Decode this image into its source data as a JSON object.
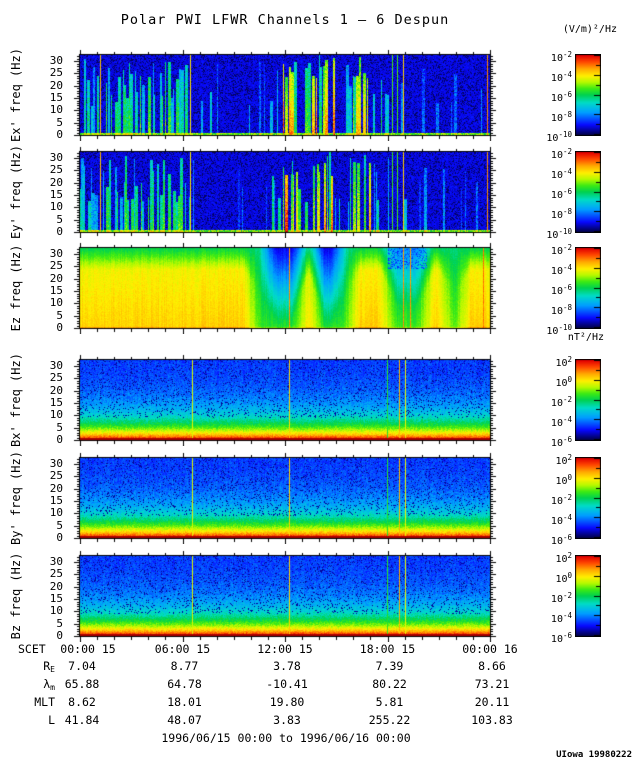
{
  "title": "Polar PWI LFWR Channels 1 — 6 Despun",
  "units": {
    "electric": "(V/m)²/Hz",
    "magnetic": "nT²/Hz"
  },
  "footer": {
    "date_range": "1996/06/15 00:00 to 1996/06/16 00:00",
    "credit": "UIowa 19980222"
  },
  "ephemeris": {
    "rows": [
      {
        "id": "re",
        "label_main": "R",
        "label_sub": "E",
        "values": [
          "7.04",
          "8.77",
          "3.78",
          "7.39",
          "8.66"
        ]
      },
      {
        "id": "lambda-m",
        "label_main": "λ",
        "label_sub": "m",
        "values": [
          "65.88",
          "64.78",
          "-10.41",
          "80.22",
          "73.21"
        ]
      },
      {
        "id": "mlt",
        "label_main": "MLT",
        "label_sub": "",
        "values": [
          "8.62",
          "18.01",
          "19.80",
          "5.81",
          "20.11"
        ]
      },
      {
        "id": "l",
        "label_main": "L",
        "label_sub": "",
        "values": [
          "41.84",
          "48.07",
          "3.83",
          "255.22",
          "103.83"
        ]
      }
    ]
  },
  "chart_data": {
    "type": "heatmap",
    "title": "Polar PWI LFWR Channels 1 — 6 Despun",
    "x_axis": {
      "label": "SCET",
      "tick_labels": [
        "00:00 15",
        "06:00 15",
        "12:00 15",
        "18:00 15",
        "00:00 16"
      ],
      "tick_hours": [
        0,
        6,
        12,
        18,
        24
      ],
      "span_hours": 24
    },
    "y_axis": {
      "unit": "Hz",
      "tick_values": [
        0,
        5,
        10,
        15,
        20,
        25,
        30
      ],
      "max_hz": 32.5
    },
    "colormap_stops": [
      [
        0,
        2,
        2,
        80
      ],
      [
        0.12,
        8,
        8,
        255
      ],
      [
        0.28,
        0,
        160,
        255
      ],
      [
        0.4,
        0,
        220,
        200
      ],
      [
        0.5,
        0,
        210,
        80
      ],
      [
        0.58,
        60,
        235,
        20
      ],
      [
        0.66,
        180,
        250,
        0
      ],
      [
        0.74,
        255,
        240,
        0
      ],
      [
        0.83,
        255,
        170,
        0
      ],
      [
        0.92,
        255,
        70,
        0
      ],
      [
        1,
        225,
        0,
        0
      ]
    ],
    "panels": [
      {
        "id": "ex",
        "ylabel": "Ex' freq (Hz)",
        "style": "burst",
        "seed": 11,
        "colorbar_unit": "(V/m)²/Hz",
        "colorbar_tick_exponents": [
          "-2",
          "-4",
          "-6",
          "-8",
          "-10"
        ]
      },
      {
        "id": "ey",
        "ylabel": "Ey' freq (Hz)",
        "style": "burst",
        "seed": 23,
        "colorbar_unit": "(V/m)²/Hz",
        "colorbar_tick_exponents": [
          "-2",
          "-4",
          "-6",
          "-8",
          "-10"
        ]
      },
      {
        "id": "ez",
        "ylabel": "Ez freq (Hz)",
        "style": "ez",
        "seed": 37,
        "colorbar_unit": "(V/m)²/Hz",
        "colorbar_tick_exponents": [
          "-2",
          "-4",
          "-6",
          "-8",
          "-10"
        ]
      },
      {
        "id": "bx",
        "ylabel": "Bx' freq (Hz)",
        "style": "b",
        "seed": 47,
        "colorbar_unit": "nT²/Hz",
        "colorbar_tick_exponents": [
          "2",
          "0",
          "-2",
          "-4",
          "-6"
        ]
      },
      {
        "id": "by",
        "ylabel": "By' freq (Hz)",
        "style": "b",
        "seed": 59,
        "colorbar_unit": "nT²/Hz",
        "colorbar_tick_exponents": [
          "2",
          "0",
          "-2",
          "-4",
          "-6"
        ]
      },
      {
        "id": "bz",
        "ylabel": "Bz freq (Hz)",
        "style": "b",
        "seed": 71,
        "colorbar_unit": "nT²/Hz",
        "colorbar_tick_exponents": [
          "2",
          "0",
          "-2",
          "-4",
          "-6"
        ]
      }
    ],
    "e_envelope": [
      [
        0,
        0.1,
        0.85,
        0.55
      ],
      [
        0.1,
        0.27,
        0.75,
        0.6
      ],
      [
        0.27,
        0.34,
        0.25,
        0.4
      ],
      [
        0.34,
        0.46,
        0.12,
        0.3
      ],
      [
        0.46,
        0.49,
        0.3,
        0.5
      ],
      [
        0.49,
        0.53,
        0.9,
        0.95
      ],
      [
        0.53,
        0.565,
        0.5,
        0.6
      ],
      [
        0.565,
        0.62,
        0.85,
        0.9
      ],
      [
        0.62,
        0.66,
        0.3,
        0.5
      ],
      [
        0.66,
        0.71,
        0.8,
        0.85
      ],
      [
        0.71,
        0.76,
        0.35,
        0.5
      ],
      [
        0.76,
        0.8,
        0.2,
        0.45
      ],
      [
        0.8,
        1.001,
        0.1,
        0.3
      ]
    ],
    "e_lines": [
      {
        "t": 0.05,
        "v": 0.8
      },
      {
        "t": 0.27,
        "v": 0.75
      },
      {
        "t": 0.763,
        "v": 0.58
      },
      {
        "t": 0.776,
        "v": 0.58
      },
      {
        "t": 0.789,
        "v": 0.78
      },
      {
        "t": 0.995,
        "v": 0.86
      }
    ],
    "ez_states": {
      "yellow": [
        0.78,
        0.5,
        0.72
      ],
      "green": [
        0.58,
        0.46,
        0.4
      ],
      "nblue": [
        0.55,
        0.1,
        0.12
      ],
      "gblue": [
        0.58,
        0.26,
        0.25
      ]
    },
    "ez_segments": [
      [
        0,
        0.42,
        "yellow"
      ],
      [
        0.42,
        0.455,
        "green"
      ],
      [
        0.455,
        0.54,
        "nblue"
      ],
      [
        0.54,
        0.575,
        "yellow"
      ],
      [
        0.575,
        0.635,
        "nblue"
      ],
      [
        0.635,
        0.665,
        "green"
      ],
      [
        0.665,
        0.755,
        "yellow"
      ],
      [
        0.755,
        0.845,
        "gblue"
      ],
      [
        0.845,
        0.895,
        "yellow"
      ],
      [
        0.895,
        0.932,
        "green"
      ],
      [
        0.932,
        1.001,
        "yellow"
      ]
    ],
    "ez_lines": [
      {
        "t": 0.512,
        "v": 0.85
      },
      {
        "t": 0.79,
        "v": 0.85
      },
      {
        "t": 0.807,
        "v": 0.85
      },
      {
        "t": 0.985,
        "v": 0.88
      }
    ],
    "b_profile": {
      "floor": 0.165,
      "amp": 0.86,
      "efold_hz": 7.2
    },
    "b_lines": [
      {
        "t": 0.273,
        "v": 0.7
      },
      {
        "t": 0.512,
        "v": 0.78
      },
      {
        "t": 0.751,
        "v": 0.55
      },
      {
        "t": 0.781,
        "v": 0.82
      },
      {
        "t": 0.795,
        "v": 0.72
      }
    ]
  }
}
